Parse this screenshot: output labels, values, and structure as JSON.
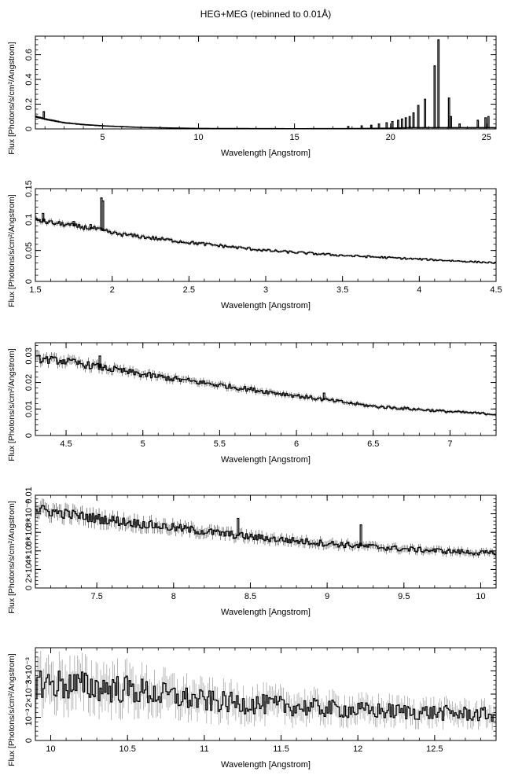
{
  "figure_title": "HEG+MEG (rebinned to 0.01Å)",
  "chart_data": [
    {
      "type": "line",
      "style": "histogram step with error bars",
      "xlabel": "Wavelength [Angstrom]",
      "ylabel": "Flux [Photons/s/cm²/Angstrom]",
      "xlim": [
        1.5,
        25.5
      ],
      "ylim": [
        0,
        0.75
      ],
      "xticks": [
        5,
        10,
        15,
        20,
        25
      ],
      "xtick_labels": [
        "5",
        "10",
        "15",
        "20",
        "25"
      ],
      "yticks": [
        0,
        0.2,
        0.4,
        0.6
      ],
      "ytick_labels": [
        "0",
        "0.2",
        "0.4",
        "0.6"
      ],
      "grid": false,
      "continuum": [
        [
          1.5,
          0.1
        ],
        [
          2.0,
          0.08
        ],
        [
          3.0,
          0.05
        ],
        [
          4.0,
          0.035
        ],
        [
          5.0,
          0.025
        ],
        [
          7.0,
          0.012
        ],
        [
          10.0,
          0.004
        ],
        [
          15.0,
          0.002
        ],
        [
          18.0,
          0.003
        ],
        [
          20.0,
          0.006
        ],
        [
          21.0,
          0.01
        ],
        [
          22.0,
          0.01
        ],
        [
          25.5,
          0.01
        ]
      ],
      "lines": [
        {
          "x": 1.94,
          "y": 0.14
        },
        {
          "x": 17.8,
          "y": 0.02
        },
        {
          "x": 18.5,
          "y": 0.025
        },
        {
          "x": 19.0,
          "y": 0.03
        },
        {
          "x": 19.4,
          "y": 0.04
        },
        {
          "x": 19.8,
          "y": 0.05
        },
        {
          "x": 20.1,
          "y": 0.06
        },
        {
          "x": 20.4,
          "y": 0.07
        },
        {
          "x": 20.6,
          "y": 0.08
        },
        {
          "x": 20.8,
          "y": 0.09
        },
        {
          "x": 21.0,
          "y": 0.1
        },
        {
          "x": 21.2,
          "y": 0.13
        },
        {
          "x": 21.45,
          "y": 0.19
        },
        {
          "x": 21.8,
          "y": 0.24
        },
        {
          "x": 22.3,
          "y": 0.51
        },
        {
          "x": 22.5,
          "y": 0.72
        },
        {
          "x": 23.05,
          "y": 0.25
        },
        {
          "x": 23.15,
          "y": 0.1
        },
        {
          "x": 23.6,
          "y": 0.04
        },
        {
          "x": 24.55,
          "y": 0.07
        },
        {
          "x": 24.95,
          "y": 0.09
        },
        {
          "x": 25.1,
          "y": 0.1
        }
      ]
    },
    {
      "type": "line",
      "style": "histogram step with error bars",
      "xlabel": "Wavelength [Angstrom]",
      "ylabel": "Flux [Photons/s/cm²/Angstrom]",
      "xlim": [
        1.5,
        4.5
      ],
      "ylim": [
        0,
        0.15
      ],
      "xticks": [
        1.5,
        2,
        2.5,
        3,
        3.5,
        4,
        4.5
      ],
      "xtick_labels": [
        "1.5",
        "2",
        "2.5",
        "3",
        "3.5",
        "4",
        "4.5"
      ],
      "yticks": [
        0,
        0.05,
        0.1,
        0.15
      ],
      "ytick_labels": [
        "0",
        "0.05",
        "0.1",
        "0.15"
      ],
      "grid": false,
      "continuum": [
        [
          1.5,
          0.1
        ],
        [
          1.6,
          0.095
        ],
        [
          1.7,
          0.092
        ],
        [
          1.8,
          0.088
        ],
        [
          1.9,
          0.085
        ],
        [
          2.0,
          0.078
        ],
        [
          2.5,
          0.063
        ],
        [
          3.0,
          0.05
        ],
        [
          3.5,
          0.042
        ],
        [
          4.0,
          0.036
        ],
        [
          4.5,
          0.03
        ]
      ],
      "lines": [
        {
          "x": 1.55,
          "y": 0.11
        },
        {
          "x": 1.75,
          "y": 0.097
        },
        {
          "x": 1.86,
          "y": 0.092
        },
        {
          "x": 1.93,
          "y": 0.135
        },
        {
          "x": 1.94,
          "y": 0.13
        }
      ]
    },
    {
      "type": "line",
      "style": "histogram step with error bars",
      "xlabel": "Wavelength [Angstrom]",
      "ylabel": "Flux [Photons/s/cm²/Angstrom]",
      "xlim": [
        4.3,
        7.3
      ],
      "ylim": [
        0,
        0.035
      ],
      "xticks": [
        4.5,
        5,
        5.5,
        6,
        6.5,
        7
      ],
      "xtick_labels": [
        "4.5",
        "5",
        "5.5",
        "6",
        "6.5",
        "7"
      ],
      "yticks": [
        0,
        0.01,
        0.02,
        0.03
      ],
      "ytick_labels": [
        "0",
        "0.01",
        "0.02",
        "0.03"
      ],
      "grid": false,
      "continuum": [
        [
          4.3,
          0.029
        ],
        [
          4.5,
          0.028
        ],
        [
          4.7,
          0.026
        ],
        [
          5.0,
          0.023
        ],
        [
          5.5,
          0.019
        ],
        [
          6.0,
          0.015
        ],
        [
          6.5,
          0.011
        ],
        [
          7.0,
          0.009
        ],
        [
          7.3,
          0.008
        ]
      ],
      "lines": [
        {
          "x": 4.72,
          "y": 0.03
        },
        {
          "x": 6.18,
          "y": 0.016
        }
      ]
    },
    {
      "type": "line",
      "style": "histogram step with error bars",
      "xlabel": "Wavelength [Angstrom]",
      "ylabel": "Flux [Photons/s/cm²/Angstrom]",
      "xlim": [
        7.1,
        10.1
      ],
      "ylim": [
        0,
        0.01
      ],
      "xticks": [
        7.5,
        8,
        8.5,
        9,
        9.5,
        10
      ],
      "xtick_labels": [
        "7.5",
        "8",
        "8.5",
        "9",
        "9.5",
        "10"
      ],
      "yticks": [
        0,
        0.002,
        0.004,
        0.006,
        0.008,
        0.01
      ],
      "ytick_labels": [
        "0",
        "2×10⁻³",
        "4×10⁻³",
        "6×10⁻³",
        "8×10⁻³",
        "0.01"
      ],
      "grid": false,
      "continuum": [
        [
          7.1,
          0.0085
        ],
        [
          7.5,
          0.0075
        ],
        [
          8.0,
          0.0065
        ],
        [
          8.5,
          0.0055
        ],
        [
          9.0,
          0.0048
        ],
        [
          9.5,
          0.0042
        ],
        [
          10.1,
          0.0037
        ]
      ],
      "lines": [
        {
          "x": 8.42,
          "y": 0.0075
        },
        {
          "x": 9.22,
          "y": 0.0068
        }
      ]
    },
    {
      "type": "line",
      "style": "histogram step with error bars",
      "xlabel": "Wavelength [Angstrom]",
      "ylabel": "Flux [Photons/s/cm²/Angstrom]",
      "xlim": [
        9.9,
        12.9
      ],
      "ylim": [
        0,
        0.004
      ],
      "xticks": [
        10,
        10.5,
        11,
        11.5,
        12,
        12.5
      ],
      "xtick_labels": [
        "10",
        "10.5",
        "11",
        "11.5",
        "12",
        "12.5"
      ],
      "yticks": [
        0,
        0.001,
        0.002,
        0.003
      ],
      "ytick_labels": [
        "0",
        "10⁻³",
        "2×10⁻³",
        "3×10⁻³"
      ],
      "grid": false,
      "continuum": [
        [
          9.9,
          0.0025
        ],
        [
          10.5,
          0.0022
        ],
        [
          11.0,
          0.0017
        ],
        [
          11.5,
          0.0015
        ],
        [
          12.0,
          0.0013
        ],
        [
          12.5,
          0.0012
        ],
        [
          12.9,
          0.0011
        ]
      ],
      "lines": []
    }
  ]
}
